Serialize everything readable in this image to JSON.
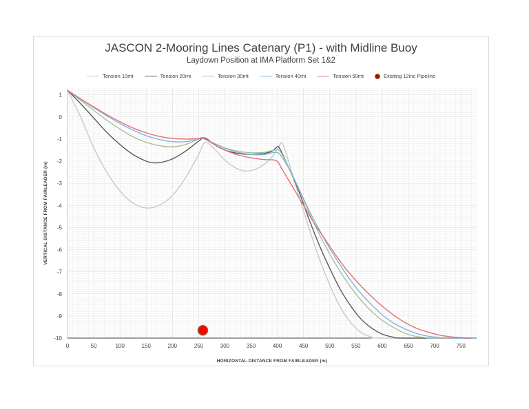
{
  "chart_data": {
    "type": "line",
    "title_main": "JASCON 2-Mooring Lines Catenary (P1) -",
    "title_suffix": " with Midline Buoy",
    "subtitle": "Laydown Position at IMA Platform Set 1&2",
    "xlabel": "HORIZONTAL DISTANCE FROM FAIRLEADER (m)",
    "ylabel": "VERTICAL DISTANCE FROM FAIRLEADER (m)",
    "xlim": [
      0,
      780
    ],
    "ylim": [
      -10,
      1.3
    ],
    "x_ticks": [
      0,
      50,
      100,
      150,
      200,
      250,
      300,
      350,
      400,
      450,
      500,
      550,
      600,
      650,
      700,
      750
    ],
    "y_ticks": [
      1,
      0,
      -1,
      -2,
      -3,
      -4,
      -5,
      -6,
      -7,
      -8,
      -9,
      -10
    ],
    "grid": true,
    "legend_position": "top",
    "series": [
      {
        "name": "Tension 10mt",
        "color": "#c8c8c8",
        "points": [
          [
            0,
            1.2
          ],
          [
            25,
            0.0
          ],
          [
            50,
            -1.4
          ],
          [
            75,
            -2.5
          ],
          [
            100,
            -3.35
          ],
          [
            125,
            -3.9
          ],
          [
            150,
            -4.12
          ],
          [
            175,
            -4.0
          ],
          [
            200,
            -3.55
          ],
          [
            225,
            -2.75
          ],
          [
            250,
            -1.7
          ],
          [
            262,
            -1.15
          ],
          [
            280,
            -1.45
          ],
          [
            300,
            -1.95
          ],
          [
            320,
            -2.3
          ],
          [
            340,
            -2.45
          ],
          [
            360,
            -2.35
          ],
          [
            380,
            -2.05
          ],
          [
            395,
            -1.65
          ],
          [
            405,
            -1.25
          ],
          [
            410,
            -1.2
          ],
          [
            420,
            -1.9
          ],
          [
            440,
            -3.5
          ],
          [
            460,
            -5.0
          ],
          [
            480,
            -6.4
          ],
          [
            500,
            -7.6
          ],
          [
            520,
            -8.6
          ],
          [
            540,
            -9.3
          ],
          [
            560,
            -9.75
          ],
          [
            580,
            -9.95
          ],
          [
            600,
            -10.0
          ],
          [
            780,
            -10.0
          ]
        ]
      },
      {
        "name": "Tension 20mt",
        "color": "#595959",
        "points": [
          [
            0,
            1.2
          ],
          [
            25,
            0.6
          ],
          [
            50,
            -0.05
          ],
          [
            75,
            -0.7
          ],
          [
            100,
            -1.25
          ],
          [
            125,
            -1.7
          ],
          [
            150,
            -2.0
          ],
          [
            165,
            -2.08
          ],
          [
            180,
            -2.05
          ],
          [
            200,
            -1.9
          ],
          [
            225,
            -1.55
          ],
          [
            250,
            -1.1
          ],
          [
            262,
            -0.95
          ],
          [
            280,
            -1.25
          ],
          [
            300,
            -1.5
          ],
          [
            325,
            -1.65
          ],
          [
            350,
            -1.7
          ],
          [
            375,
            -1.65
          ],
          [
            390,
            -1.55
          ],
          [
            400,
            -1.35
          ],
          [
            405,
            -1.45
          ],
          [
            420,
            -2.2
          ],
          [
            440,
            -3.3
          ],
          [
            460,
            -4.6
          ],
          [
            480,
            -5.8
          ],
          [
            500,
            -6.85
          ],
          [
            520,
            -7.8
          ],
          [
            540,
            -8.55
          ],
          [
            560,
            -9.15
          ],
          [
            580,
            -9.55
          ],
          [
            600,
            -9.82
          ],
          [
            620,
            -9.95
          ],
          [
            640,
            -10.0
          ],
          [
            780,
            -10.0
          ]
        ]
      },
      {
        "name": "Tension 30mt",
        "color": "#a9c08f",
        "points": [
          [
            0,
            1.2
          ],
          [
            25,
            0.75
          ],
          [
            50,
            0.3
          ],
          [
            75,
            -0.15
          ],
          [
            100,
            -0.55
          ],
          [
            125,
            -0.9
          ],
          [
            150,
            -1.15
          ],
          [
            175,
            -1.3
          ],
          [
            200,
            -1.35
          ],
          [
            225,
            -1.25
          ],
          [
            250,
            -1.0
          ],
          [
            260,
            -0.98
          ],
          [
            280,
            -1.2
          ],
          [
            300,
            -1.4
          ],
          [
            325,
            -1.55
          ],
          [
            350,
            -1.62
          ],
          [
            375,
            -1.6
          ],
          [
            395,
            -1.5
          ],
          [
            405,
            -1.55
          ],
          [
            420,
            -2.2
          ],
          [
            440,
            -3.2
          ],
          [
            460,
            -4.3
          ],
          [
            480,
            -5.3
          ],
          [
            500,
            -6.2
          ],
          [
            520,
            -7.0
          ],
          [
            540,
            -7.7
          ],
          [
            560,
            -8.3
          ],
          [
            580,
            -8.8
          ],
          [
            600,
            -9.2
          ],
          [
            620,
            -9.5
          ],
          [
            640,
            -9.75
          ],
          [
            660,
            -9.9
          ],
          [
            680,
            -9.97
          ],
          [
            700,
            -10.0
          ],
          [
            780,
            -10.0
          ]
        ]
      },
      {
        "name": "Tension 40mt",
        "color": "#7fb2e5",
        "points": [
          [
            0,
            1.2
          ],
          [
            25,
            0.8
          ],
          [
            50,
            0.42
          ],
          [
            75,
            0.05
          ],
          [
            100,
            -0.3
          ],
          [
            125,
            -0.6
          ],
          [
            150,
            -0.85
          ],
          [
            175,
            -1.02
          ],
          [
            200,
            -1.12
          ],
          [
            225,
            -1.12
          ],
          [
            250,
            -1.0
          ],
          [
            258,
            -0.97
          ],
          [
            280,
            -1.2
          ],
          [
            300,
            -1.42
          ],
          [
            325,
            -1.6
          ],
          [
            350,
            -1.7
          ],
          [
            375,
            -1.7
          ],
          [
            395,
            -1.6
          ],
          [
            405,
            -1.7
          ],
          [
            420,
            -2.25
          ],
          [
            440,
            -3.2
          ],
          [
            460,
            -4.2
          ],
          [
            480,
            -5.1
          ],
          [
            500,
            -5.95
          ],
          [
            520,
            -6.7
          ],
          [
            540,
            -7.4
          ],
          [
            560,
            -8.0
          ],
          [
            580,
            -8.5
          ],
          [
            600,
            -8.95
          ],
          [
            620,
            -9.3
          ],
          [
            640,
            -9.55
          ],
          [
            660,
            -9.75
          ],
          [
            680,
            -9.88
          ],
          [
            700,
            -9.95
          ],
          [
            720,
            -9.99
          ],
          [
            740,
            -10.0
          ],
          [
            780,
            -10.0
          ]
        ]
      },
      {
        "name": "Tension 50mt",
        "color": "#e07070",
        "points": [
          [
            0,
            1.2
          ],
          [
            25,
            0.82
          ],
          [
            50,
            0.45
          ],
          [
            75,
            0.1
          ],
          [
            100,
            -0.22
          ],
          [
            125,
            -0.5
          ],
          [
            150,
            -0.72
          ],
          [
            175,
            -0.88
          ],
          [
            200,
            -0.97
          ],
          [
            225,
            -1.0
          ],
          [
            250,
            -0.98
          ],
          [
            258,
            -0.95
          ],
          [
            280,
            -1.25
          ],
          [
            300,
            -1.5
          ],
          [
            325,
            -1.72
          ],
          [
            350,
            -1.85
          ],
          [
            375,
            -1.93
          ],
          [
            398,
            -1.98
          ],
          [
            410,
            -2.4
          ],
          [
            430,
            -3.2
          ],
          [
            450,
            -4.0
          ],
          [
            470,
            -4.8
          ],
          [
            490,
            -5.5
          ],
          [
            510,
            -6.2
          ],
          [
            530,
            -6.85
          ],
          [
            550,
            -7.4
          ],
          [
            570,
            -7.9
          ],
          [
            590,
            -8.35
          ],
          [
            610,
            -8.75
          ],
          [
            630,
            -9.1
          ],
          [
            650,
            -9.38
          ],
          [
            670,
            -9.6
          ],
          [
            690,
            -9.75
          ],
          [
            710,
            -9.87
          ],
          [
            730,
            -9.94
          ],
          [
            750,
            -9.98
          ],
          [
            770,
            -10.0
          ]
        ]
      }
    ],
    "marker_series": {
      "name": "Existing 12inc Pipeline",
      "color": "#ff0000",
      "edge_color": "#8a6d3b",
      "points": [
        [
          258,
          -9.65
        ]
      ]
    }
  }
}
